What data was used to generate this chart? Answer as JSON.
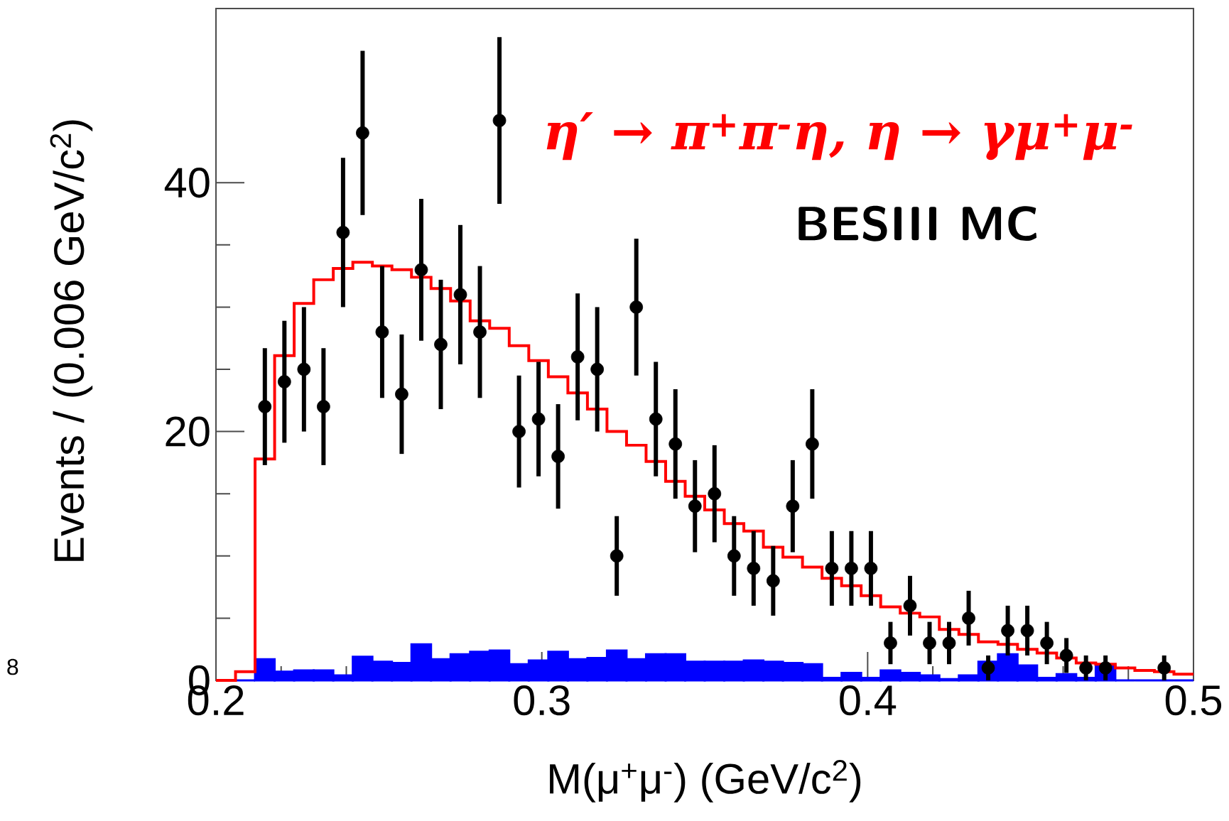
{
  "chart_data": {
    "type": "histogram",
    "xlabel": "M(μ$^{+}$μ$^{-}$) (GeV/c$^{2}$)",
    "ylabel": "Events / (0.006 GeV/c$^{2}$)",
    "annotations": [
      "η′ → π$^{+}$π$^{-}$η, η → γμ$^{+}$μ$^{-}$",
      "BESIII MC",
      "8"
    ],
    "bins": [
      0.2,
      0.206,
      0.212,
      0.218,
      0.224,
      0.23,
      0.236,
      0.242,
      0.248,
      0.254,
      0.26,
      0.266,
      0.272,
      0.278,
      0.284,
      0.29,
      0.296,
      0.302,
      0.308,
      0.314,
      0.32,
      0.326,
      0.332,
      0.338,
      0.344,
      0.35,
      0.356,
      0.362,
      0.368,
      0.374,
      0.38,
      0.386,
      0.392,
      0.398,
      0.404,
      0.41,
      0.416,
      0.422,
      0.428,
      0.434,
      0.44,
      0.446,
      0.452,
      0.458,
      0.464,
      0.47,
      0.476,
      0.482,
      0.488,
      0.494,
      0.5
    ],
    "series": [
      {
        "type": "histogram",
        "color": "#0000ff",
        "values": [
          0,
          0,
          1.7,
          0.7,
          0.8,
          0.8,
          0.4,
          1.9,
          1.5,
          1.4,
          2.9,
          1.7,
          2.1,
          2.3,
          2.4,
          1.3,
          1.6,
          2.3,
          1.7,
          1.8,
          2.4,
          1.7,
          2.1,
          2.1,
          1.5,
          1.5,
          1.5,
          1.6,
          1.5,
          1.4,
          1.3,
          0.2,
          0.6,
          0.2,
          0.8,
          0.6,
          0.4,
          0.1,
          0.4,
          1.5,
          2.1,
          1.2,
          0.2,
          0.5,
          0.2,
          1.2,
          0,
          0,
          0,
          0
        ]
      },
      {
        "type": "step",
        "color": "#ff0000",
        "marker": "none",
        "x": [
          0.2,
          0.206,
          0.212,
          0.218,
          0.224,
          0.23,
          0.236,
          0.242,
          0.248,
          0.254,
          0.26,
          0.266,
          0.272,
          0.278,
          0.284,
          0.29,
          0.296,
          0.302,
          0.308,
          0.314,
          0.32,
          0.326,
          0.332,
          0.338,
          0.344,
          0.35,
          0.356,
          0.362,
          0.368,
          0.374,
          0.38,
          0.386,
          0.392,
          0.398,
          0.404,
          0.41,
          0.416,
          0.422,
          0.428,
          0.434,
          0.44,
          0.446,
          0.452,
          0.458,
          0.464,
          0.47,
          0.476,
          0.482,
          0.488,
          0.494,
          0.5
        ],
        "values": [
          0,
          0.7,
          17.8,
          26.1,
          30.3,
          32.2,
          33.1,
          33.6,
          33.3,
          33.0,
          32.4,
          31.5,
          30.5,
          28.9,
          28.3,
          26.9,
          25.7,
          24.4,
          23.1,
          21.8,
          20.0,
          18.9,
          17.6,
          16.0,
          14.8,
          13.7,
          12.6,
          12.0,
          10.7,
          9.9,
          9.1,
          8.2,
          7.6,
          6.8,
          5.9,
          5.4,
          5.1,
          4.1,
          3.7,
          3.1,
          2.9,
          2.5,
          2.2,
          1.8,
          1.4,
          1.3,
          1.0,
          0.8,
          0.7,
          0.5,
          0.5
        ]
      },
      {
        "type": "scatter",
        "color": "#000000",
        "marker": "circle",
        "x": [
          0.215,
          0.221,
          0.227,
          0.233,
          0.239,
          0.245,
          0.251,
          0.257,
          0.263,
          0.269,
          0.275,
          0.281,
          0.287,
          0.293,
          0.299,
          0.305,
          0.311,
          0.317,
          0.323,
          0.329,
          0.335,
          0.341,
          0.347,
          0.353,
          0.359,
          0.365,
          0.371,
          0.377,
          0.383,
          0.389,
          0.395,
          0.401,
          0.407,
          0.413,
          0.419,
          0.425,
          0.431,
          0.437,
          0.443,
          0.449,
          0.455,
          0.461,
          0.467,
          0.473,
          0.479,
          0.485,
          0.491
        ],
        "values": [
          22,
          24,
          25,
          22,
          36,
          44,
          28,
          23,
          33,
          27,
          31,
          28,
          45,
          20,
          21,
          18,
          26,
          25,
          10,
          30,
          21,
          19,
          14,
          15,
          10,
          9,
          8,
          14,
          19,
          9,
          9,
          9,
          3,
          6,
          3,
          3,
          5,
          1,
          4,
          4,
          3,
          2,
          1,
          1,
          null,
          null,
          1
        ],
        "errors": [
          4.7,
          4.9,
          5,
          4.7,
          6,
          6.6,
          5.3,
          4.8,
          5.7,
          5.2,
          5.6,
          5.3,
          6.7,
          4.5,
          4.6,
          4.2,
          5.1,
          5,
          3.2,
          5.5,
          4.6,
          4.4,
          3.7,
          3.9,
          3.2,
          3,
          2.8,
          3.7,
          4.4,
          3,
          3,
          3,
          1.7,
          2.4,
          1.7,
          1.7,
          2.2,
          1,
          2,
          2,
          1.7,
          1.4,
          1,
          1,
          null,
          null,
          1
        ]
      }
    ],
    "xlim": [
      0.2,
      0.5
    ],
    "xticks": [
      0.2,
      0.3,
      0.4,
      0.5
    ],
    "ylim": [
      0,
      54
    ],
    "yticks": [
      0,
      20,
      40
    ]
  }
}
